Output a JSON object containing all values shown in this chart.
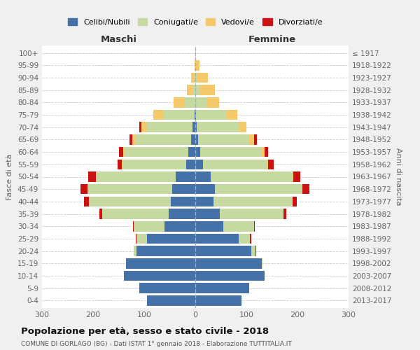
{
  "age_groups": [
    "0-4",
    "5-9",
    "10-14",
    "15-19",
    "20-24",
    "25-29",
    "30-34",
    "35-39",
    "40-44",
    "45-49",
    "50-54",
    "55-59",
    "60-64",
    "65-69",
    "70-74",
    "75-79",
    "80-84",
    "85-89",
    "90-94",
    "95-99",
    "100+"
  ],
  "birth_years": [
    "2013-2017",
    "2008-2012",
    "2003-2007",
    "1998-2002",
    "1993-1997",
    "1988-1992",
    "1983-1987",
    "1978-1982",
    "1973-1977",
    "1968-1972",
    "1963-1967",
    "1958-1962",
    "1953-1957",
    "1948-1952",
    "1943-1947",
    "1938-1942",
    "1933-1937",
    "1928-1932",
    "1923-1927",
    "1918-1922",
    "≤ 1917"
  ],
  "colors": {
    "celibe": "#4472a8",
    "coniugato": "#c5d9a0",
    "vedovo": "#f5c96a",
    "divorziato": "#cc1111"
  },
  "maschi": {
    "celibe": [
      95,
      110,
      140,
      135,
      115,
      95,
      60,
      52,
      48,
      45,
      38,
      18,
      14,
      8,
      5,
      2,
      0,
      0,
      0,
      0,
      0
    ],
    "coniugato": [
      0,
      0,
      0,
      0,
      5,
      20,
      60,
      130,
      160,
      165,
      155,
      125,
      125,
      110,
      90,
      60,
      22,
      5,
      3,
      0,
      0
    ],
    "vedovo": [
      0,
      0,
      0,
      0,
      0,
      0,
      0,
      0,
      0,
      1,
      2,
      1,
      2,
      5,
      10,
      20,
      20,
      12,
      5,
      1,
      0
    ],
    "divorziato": [
      0,
      0,
      0,
      0,
      1,
      2,
      2,
      5,
      10,
      14,
      14,
      8,
      8,
      6,
      5,
      0,
      0,
      0,
      0,
      0,
      0
    ]
  },
  "femmine": {
    "nubile": [
      90,
      105,
      135,
      130,
      110,
      85,
      55,
      48,
      35,
      38,
      30,
      15,
      10,
      5,
      3,
      2,
      0,
      0,
      0,
      0,
      0
    ],
    "coniugata": [
      0,
      0,
      0,
      2,
      8,
      22,
      60,
      125,
      155,
      170,
      160,
      125,
      120,
      100,
      82,
      60,
      22,
      8,
      3,
      0,
      0
    ],
    "vedova": [
      0,
      0,
      0,
      0,
      0,
      0,
      0,
      0,
      0,
      1,
      2,
      3,
      5,
      10,
      15,
      20,
      25,
      30,
      22,
      8,
      2
    ],
    "divorziata": [
      0,
      0,
      0,
      0,
      1,
      2,
      2,
      5,
      8,
      14,
      14,
      10,
      8,
      5,
      0,
      0,
      0,
      0,
      0,
      0,
      0
    ]
  },
  "xlim": 300,
  "xlabel_left": "Maschi",
  "xlabel_right": "Femmine",
  "ylabel": "Fasce di età",
  "ylabel_right": "Anni di nascita",
  "title": "Popolazione per età, sesso e stato civile - 2018",
  "subtitle": "COMUNE DI GORLAGO (BG) - Dati ISTAT 1° gennaio 2018 - Elaborazione TUTTITALIA.IT",
  "legend_labels": [
    "Celibi/Nubili",
    "Coniugati/e",
    "Vedovi/e",
    "Divorziati/e"
  ],
  "bg_color": "#f0f0f0",
  "plot_bg": "#ffffff",
  "grid_color": "#cccccc"
}
